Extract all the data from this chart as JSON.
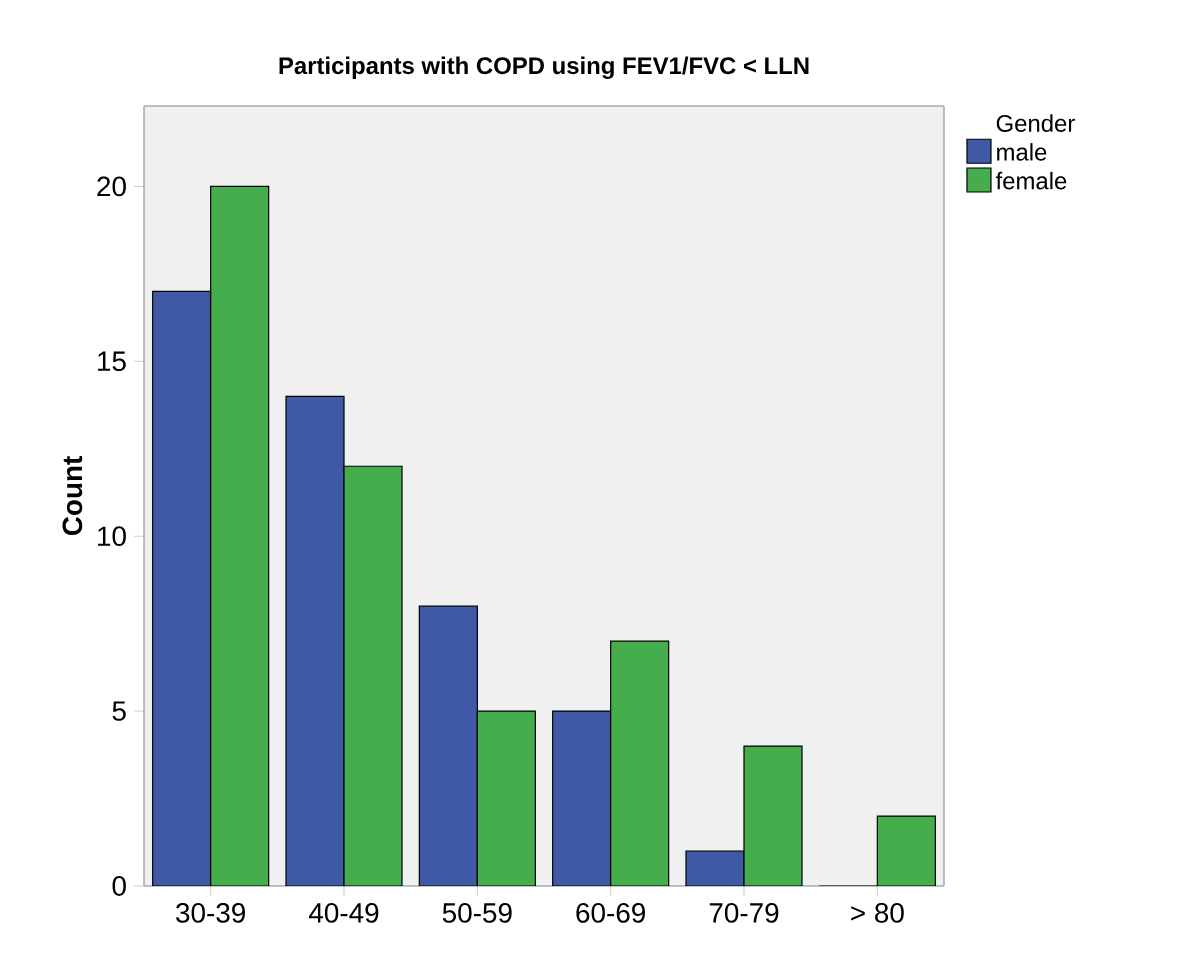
{
  "chart_data": {
    "type": "bar",
    "title": "Participants with COPD using FEV1/FVC < LLN",
    "ylabel": "Count",
    "legend_title": "Gender",
    "categories": [
      "30-39",
      "40-49",
      "50-59",
      "60-69",
      "70-79",
      "> 80"
    ],
    "series": [
      {
        "name": "male",
        "color": "#3f59a6",
        "values": [
          17,
          14,
          8,
          5,
          1,
          0
        ]
      },
      {
        "name": "female",
        "color": "#46ad4c",
        "values": [
          20,
          12,
          5,
          7,
          4,
          2
        ]
      }
    ],
    "ylim": [
      0,
      22.3
    ],
    "yticks": [
      0,
      5,
      10,
      15,
      20
    ],
    "grid": false,
    "legend": "top right"
  }
}
